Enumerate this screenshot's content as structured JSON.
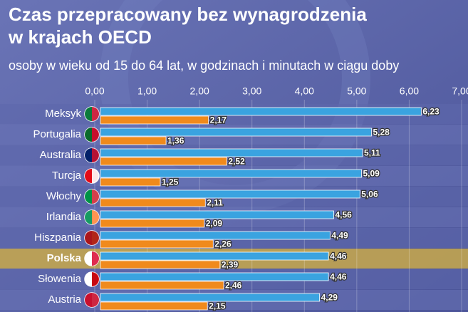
{
  "chart_data": {
    "type": "bar",
    "orientation": "horizontal",
    "title": [
      "Czas przepracowany bez wynagrodzenia",
      "w krajach OECD"
    ],
    "subtitle": "osoby w wieku od 15 do 64 lat, w godzinach i minutach w ciągu doby",
    "categories": [
      "Meksyk",
      "Portugalia",
      "Australia",
      "Turcja",
      "Włochy",
      "Irlandia",
      "Hiszpania",
      "Polska",
      "Słowenia",
      "Austria"
    ],
    "highlight_index": 7,
    "series": [
      {
        "color": "#3aa3e0",
        "values": [
          6.23,
          5.28,
          5.11,
          5.09,
          5.06,
          4.56,
          4.49,
          4.46,
          4.46,
          4.29
        ],
        "value_labels": [
          "6,23",
          "5,28",
          "5,11",
          "5,09",
          "5,06",
          "4,56",
          "4,49",
          "4,46",
          "4,46",
          "4,29"
        ]
      },
      {
        "color": "#f08a1c",
        "values": [
          2.17,
          1.36,
          2.52,
          1.25,
          2.11,
          2.09,
          2.26,
          2.39,
          2.46,
          2.15
        ],
        "value_labels": [
          "2,17",
          "1,36",
          "2,52",
          "1,25",
          "2,11",
          "2,09",
          "2,26",
          "2,39",
          "2,46",
          "2,15"
        ]
      }
    ],
    "xlim": [
      0,
      7
    ],
    "xticks": [
      {
        "value": 0,
        "label": "0,00"
      },
      {
        "value": 1,
        "label": "1,00"
      },
      {
        "value": 2,
        "label": "2,00"
      },
      {
        "value": 3,
        "label": "3,00"
      },
      {
        "value": 4,
        "label": "4,00"
      },
      {
        "value": 5,
        "label": "5,00"
      },
      {
        "value": 6,
        "label": "6,00"
      },
      {
        "value": 7,
        "label": "7,00"
      }
    ]
  }
}
